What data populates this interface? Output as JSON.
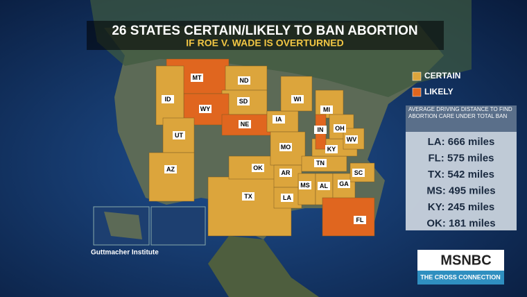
{
  "title": "26 STATES CERTAIN/LIKELY TO BAN ABORTION",
  "subtitle": "IF ROE V. WADE IS OVERTURNED",
  "legend": [
    {
      "label": "CERTAIN",
      "color": "#dca53c"
    },
    {
      "label": "LIKELY",
      "color": "#e0661f"
    }
  ],
  "states": [
    {
      "label": "MT",
      "color": "#e0661f"
    },
    {
      "label": "ND",
      "color": "#dca53c"
    },
    {
      "label": "SD",
      "color": "#dca53c"
    },
    {
      "label": "WY",
      "color": "#e0661f"
    },
    {
      "label": "ID",
      "color": "#dca53c"
    },
    {
      "label": "UT",
      "color": "#dca53c"
    },
    {
      "label": "AZ",
      "color": "#dca53c"
    },
    {
      "label": "TX",
      "color": "#dca53c"
    },
    {
      "label": "OK",
      "color": "#dca53c"
    },
    {
      "label": "NE",
      "color": "#e0661f"
    },
    {
      "label": "IA",
      "color": "#dca53c"
    },
    {
      "label": "MO",
      "color": "#dca53c"
    },
    {
      "label": "AR",
      "color": "#dca53c"
    },
    {
      "label": "LA",
      "color": "#dca53c"
    },
    {
      "label": "MS",
      "color": "#dca53c"
    },
    {
      "label": "AL",
      "color": "#dca53c"
    },
    {
      "label": "GA",
      "color": "#dca53c"
    },
    {
      "label": "SC",
      "color": "#dca53c"
    },
    {
      "label": "TN",
      "color": "#dca53c"
    },
    {
      "label": "KY",
      "color": "#dca53c"
    },
    {
      "label": "WI",
      "color": "#dca53c"
    },
    {
      "label": "MI",
      "color": "#dca53c"
    },
    {
      "label": "OH",
      "color": "#dca53c"
    },
    {
      "label": "WV",
      "color": "#dca53c"
    },
    {
      "label": "IN",
      "color": "#e0661f"
    },
    {
      "label": "FL",
      "color": "#e0661f"
    }
  ],
  "distance_panel": {
    "title": "AVERAGE DRIVING DISTANCE TO FIND ABORTION CARE UNDER TOTAL BAN",
    "rows": [
      "LA: 666 miles",
      "FL: 575 miles",
      "TX: 542 miles",
      "MS: 495 miles",
      "KY: 245 miles",
      "OK: 181 miles"
    ]
  },
  "source": "Guttmacher Institute",
  "logo": {
    "network": "MSNBC",
    "show": "THE CROSS CONNECTION"
  }
}
